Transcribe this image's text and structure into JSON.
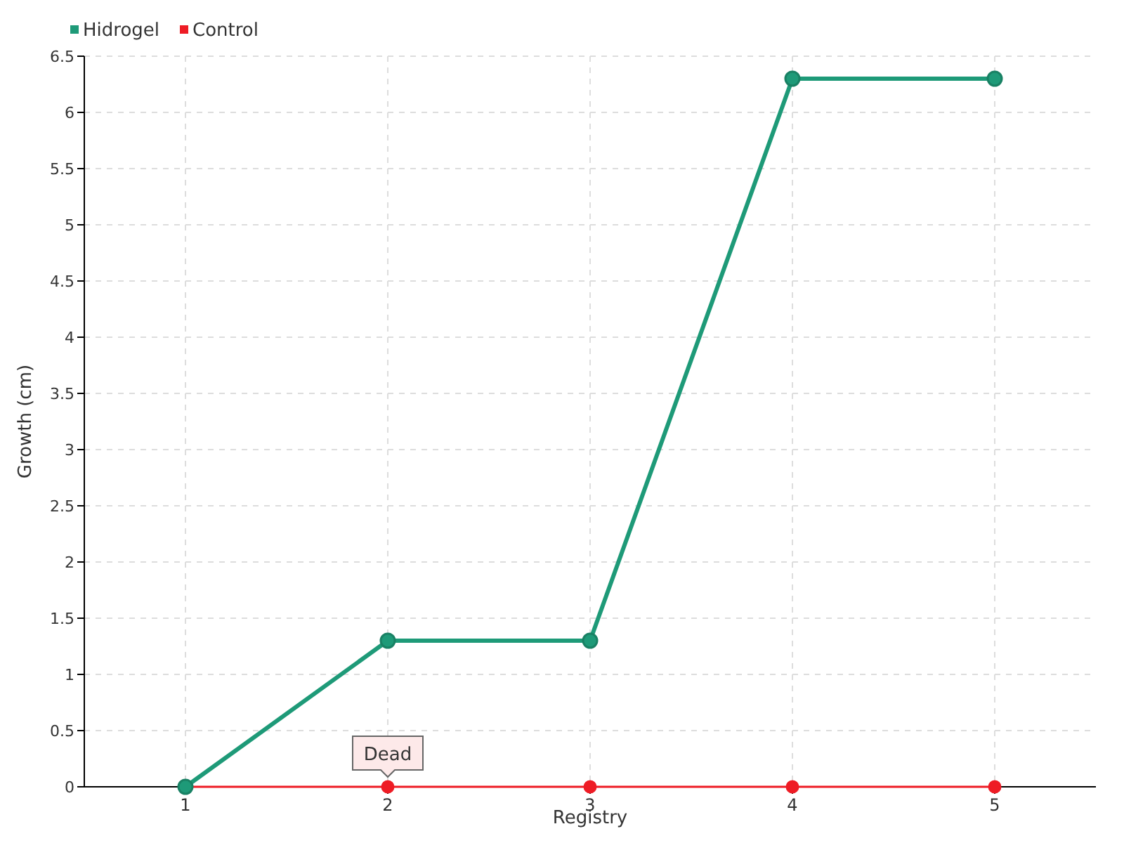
{
  "chart_data": {
    "type": "line",
    "xlabel": "Registry",
    "ylabel": "Growth (cm)",
    "categories": [
      "1",
      "2",
      "3",
      "4",
      "5"
    ],
    "series": [
      {
        "name": "Hidrogel",
        "color": "#1e9a78",
        "values": [
          0,
          1.3,
          1.3,
          6.3,
          6.3
        ]
      },
      {
        "name": "Control",
        "color": "#ee1c25",
        "values": [
          0,
          0,
          0,
          0,
          0
        ]
      }
    ],
    "ylim": [
      0,
      6.5
    ],
    "yticks": [
      0,
      0.5,
      1,
      1.5,
      2,
      2.5,
      3,
      3.5,
      4,
      4.5,
      5,
      5.5,
      6,
      6.5
    ],
    "grid": true,
    "legend": "top left",
    "marker": "circle",
    "line_style": "solid",
    "annotations": [
      {
        "text": "Dead",
        "x": "2",
        "y": 0
      }
    ]
  }
}
